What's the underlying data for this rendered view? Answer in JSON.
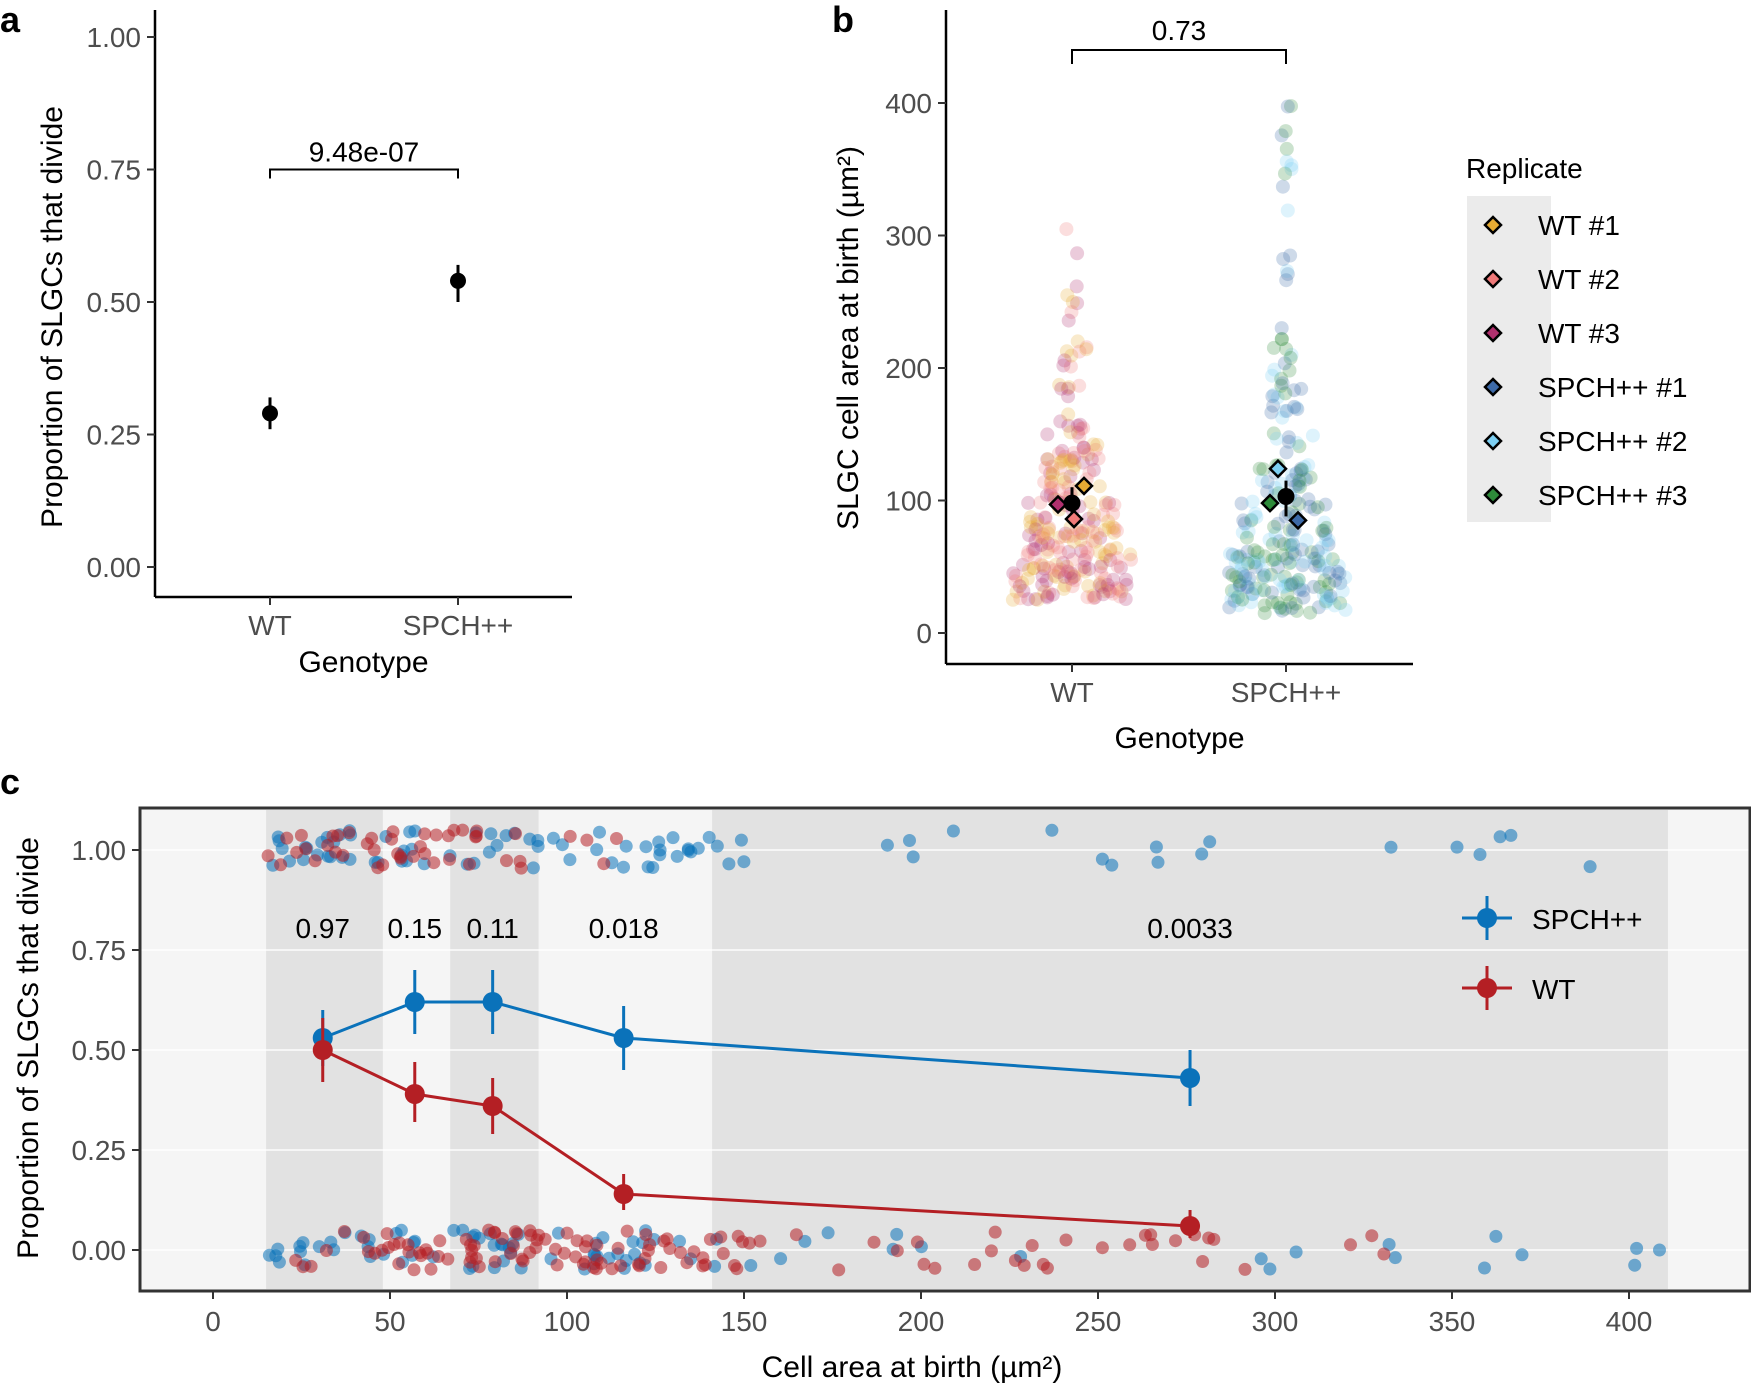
{
  "panels": {
    "a": {
      "letter": "a"
    },
    "b": {
      "letter": "b"
    },
    "c": {
      "letter": "c"
    }
  },
  "chart_data": [
    {
      "panel": "a",
      "type": "scatter",
      "title": "",
      "xlabel": "Genotype",
      "ylabel": "Proportion of SLGCs that divide",
      "categories": [
        "WT",
        "SPCH++"
      ],
      "values": [
        0.29,
        0.54
      ],
      "error_low": [
        0.26,
        0.5
      ],
      "error_high": [
        0.32,
        0.57
      ],
      "ylim": [
        0.0,
        1.0
      ],
      "yticks": [
        0.0,
        0.25,
        0.5,
        0.75,
        1.0
      ],
      "ytick_labels": [
        "0.00",
        "0.25",
        "0.50",
        "0.75",
        "1.00"
      ],
      "point_color": "#000000",
      "comparison": {
        "from": "WT",
        "to": "SPCH++",
        "label": "9.48e-07",
        "y": 0.75
      },
      "grid": false
    },
    {
      "panel": "b",
      "type": "scatter",
      "title": "",
      "xlabel": "Genotype",
      "ylabel": "SLGC cell area at birth (µm²)",
      "categories": [
        "WT",
        "SPCH++"
      ],
      "ylim": [
        0,
        450
      ],
      "yticks": [
        0,
        100,
        200,
        300,
        400
      ],
      "ytick_labels": [
        "0",
        "100",
        "200",
        "300",
        "400"
      ],
      "overall_means": [
        98,
        103
      ],
      "overall_error_low": [
        84,
        88
      ],
      "overall_error_high": [
        110,
        115
      ],
      "replicate_means": [
        {
          "name": "WT #1",
          "category": "WT",
          "value": 111
        },
        {
          "name": "WT #2",
          "category": "WT",
          "value": 86
        },
        {
          "name": "WT #3",
          "category": "WT",
          "value": 97
        },
        {
          "name": "SPCH++ #1",
          "category": "SPCH++",
          "value": 85
        },
        {
          "name": "SPCH++ #2",
          "category": "SPCH++",
          "value": 124
        },
        {
          "name": "SPCH++ #3",
          "category": "SPCH++",
          "value": 98
        }
      ],
      "comparison": {
        "from": "WT",
        "to": "SPCH++",
        "label": "0.73",
        "y": 440
      },
      "legend": {
        "title": "Replicate",
        "position": "right",
        "entries": [
          {
            "name": "WT #1",
            "color": "#E6AB33"
          },
          {
            "name": "WT #2",
            "color": "#F07A7A"
          },
          {
            "name": "WT #3",
            "color": "#B0306E"
          },
          {
            "name": "SPCH++ #1",
            "color": "#3D6AA8"
          },
          {
            "name": "SPCH++ #2",
            "color": "#7DCFF2"
          },
          {
            "name": "SPCH++ #3",
            "color": "#2E8B3A"
          }
        ]
      },
      "grid": false
    },
    {
      "panel": "c",
      "type": "line",
      "title": "",
      "xlabel": "Cell area at birth (µm²)",
      "ylabel": "Proportion of SLGCs that divide",
      "xlim": [
        -20,
        430
      ],
      "ylim": [
        -0.1,
        1.1
      ],
      "xticks": [
        0,
        50,
        100,
        150,
        200,
        250,
        300,
        350,
        400
      ],
      "xtick_labels": [
        "0",
        "50",
        "100",
        "150",
        "200",
        "250",
        "300",
        "350",
        "400"
      ],
      "yticks": [
        0.0,
        0.25,
        0.5,
        0.75,
        1.0
      ],
      "ytick_labels": [
        "0.00",
        "0.25",
        "0.50",
        "0.75",
        "1.00"
      ],
      "bins": [
        [
          15,
          48
        ],
        [
          48,
          67
        ],
        [
          67,
          92
        ],
        [
          92,
          141
        ],
        [
          141,
          411
        ]
      ],
      "bin_pvalues": [
        {
          "x": 31,
          "label": "0.97"
        },
        {
          "x": 57,
          "label": "0.15"
        },
        {
          "x": 79,
          "label": "0.11"
        },
        {
          "x": 116,
          "label": "0.018"
        },
        {
          "x": 276,
          "label": "0.0033"
        }
      ],
      "pvalue_y": 0.78,
      "series": [
        {
          "name": "SPCH++",
          "color": "#0A72BA",
          "x": [
            31,
            57,
            79,
            116,
            276
          ],
          "values": [
            0.53,
            0.62,
            0.62,
            0.53,
            0.43
          ],
          "error_low": [
            0.46,
            0.54,
            0.54,
            0.45,
            0.36
          ],
          "error_high": [
            0.6,
            0.7,
            0.7,
            0.61,
            0.5
          ]
        },
        {
          "name": "WT",
          "color": "#B41F24",
          "x": [
            31,
            57,
            79,
            116,
            276
          ],
          "values": [
            0.5,
            0.39,
            0.36,
            0.14,
            0.06
          ],
          "error_low": [
            0.42,
            0.32,
            0.29,
            0.1,
            0.03
          ],
          "error_high": [
            0.58,
            0.47,
            0.43,
            0.19,
            0.1
          ]
        }
      ],
      "legend": {
        "position": "top-right",
        "entries": [
          "SPCH++",
          "WT"
        ]
      },
      "grid": true
    }
  ]
}
